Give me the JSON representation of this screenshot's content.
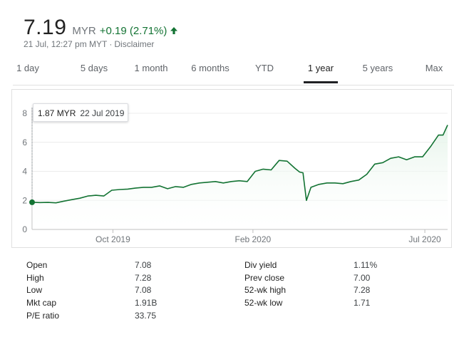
{
  "quote": {
    "price": "7.19",
    "currency": "MYR",
    "change": "+0.19 (2.71%)",
    "timestamp": "21 Jul, 12:27 pm MYT",
    "disclaimer": "Disclaimer",
    "up_color": "#137333",
    "change_icon": "arrow-up-icon"
  },
  "tabs": [
    {
      "label": "1 day",
      "active": false
    },
    {
      "label": "5 days",
      "active": false
    },
    {
      "label": "1 month",
      "active": false
    },
    {
      "label": "6 months",
      "active": false
    },
    {
      "label": "YTD",
      "active": false
    },
    {
      "label": "1 year",
      "active": true
    },
    {
      "label": "5 years",
      "active": false
    },
    {
      "label": "Max",
      "active": false
    }
  ],
  "tooltip": {
    "value": "1.87 MYR",
    "date": "22 Jul 2019"
  },
  "chart_data": {
    "type": "area",
    "y_ticks": [
      "0",
      "2",
      "4",
      "6",
      "8"
    ],
    "x_tick_labels": [
      "Oct 2019",
      "Feb 2020",
      "Jul 2020"
    ],
    "ylim": [
      0,
      8
    ],
    "line_color": "#137333",
    "fill_color": "#e6f4ea",
    "grid": true,
    "x_dates": [
      "2019-07-22",
      "2019-07-29",
      "2019-08-05",
      "2019-08-12",
      "2019-08-19",
      "2019-08-26",
      "2019-09-02",
      "2019-09-09",
      "2019-09-16",
      "2019-09-23",
      "2019-09-30",
      "2019-10-07",
      "2019-10-14",
      "2019-10-21",
      "2019-10-28",
      "2019-11-04",
      "2019-11-11",
      "2019-11-18",
      "2019-11-25",
      "2019-12-02",
      "2019-12-09",
      "2019-12-16",
      "2019-12-23",
      "2019-12-30",
      "2020-01-06",
      "2020-01-13",
      "2020-01-20",
      "2020-01-27",
      "2020-02-03",
      "2020-02-10",
      "2020-02-17",
      "2020-02-24",
      "2020-03-02",
      "2020-03-09",
      "2020-03-13",
      "2020-03-16",
      "2020-03-19",
      "2020-03-23",
      "2020-03-30",
      "2020-04-06",
      "2020-04-13",
      "2020-04-20",
      "2020-04-27",
      "2020-05-04",
      "2020-05-11",
      "2020-05-18",
      "2020-05-25",
      "2020-06-01",
      "2020-06-08",
      "2020-06-15",
      "2020-06-22",
      "2020-06-29",
      "2020-07-06",
      "2020-07-13",
      "2020-07-17",
      "2020-07-21"
    ],
    "values": [
      1.87,
      1.85,
      1.86,
      1.83,
      1.95,
      2.05,
      2.15,
      2.3,
      2.35,
      2.3,
      2.7,
      2.75,
      2.78,
      2.85,
      2.9,
      2.9,
      3.0,
      2.8,
      2.95,
      2.9,
      3.1,
      3.2,
      3.25,
      3.3,
      3.2,
      3.3,
      3.35,
      3.3,
      4.0,
      4.15,
      4.1,
      4.75,
      4.7,
      4.2,
      3.95,
      3.9,
      2.0,
      2.9,
      3.1,
      3.2,
      3.2,
      3.15,
      3.3,
      3.4,
      3.8,
      4.5,
      4.6,
      4.9,
      5.0,
      4.8,
      5.0,
      5.0,
      5.7,
      6.5,
      6.5,
      7.19
    ]
  },
  "stats": {
    "left": [
      {
        "label": "Open",
        "value": "7.08"
      },
      {
        "label": "High",
        "value": "7.28"
      },
      {
        "label": "Low",
        "value": "7.08"
      },
      {
        "label": "Mkt cap",
        "value": "1.91B"
      },
      {
        "label": "P/E ratio",
        "value": "33.75"
      }
    ],
    "right": [
      {
        "label": "Div yield",
        "value": "1.11%"
      },
      {
        "label": "Prev close",
        "value": "7.00"
      },
      {
        "label": "52-wk high",
        "value": "7.28"
      },
      {
        "label": "52-wk low",
        "value": "1.71"
      }
    ]
  }
}
